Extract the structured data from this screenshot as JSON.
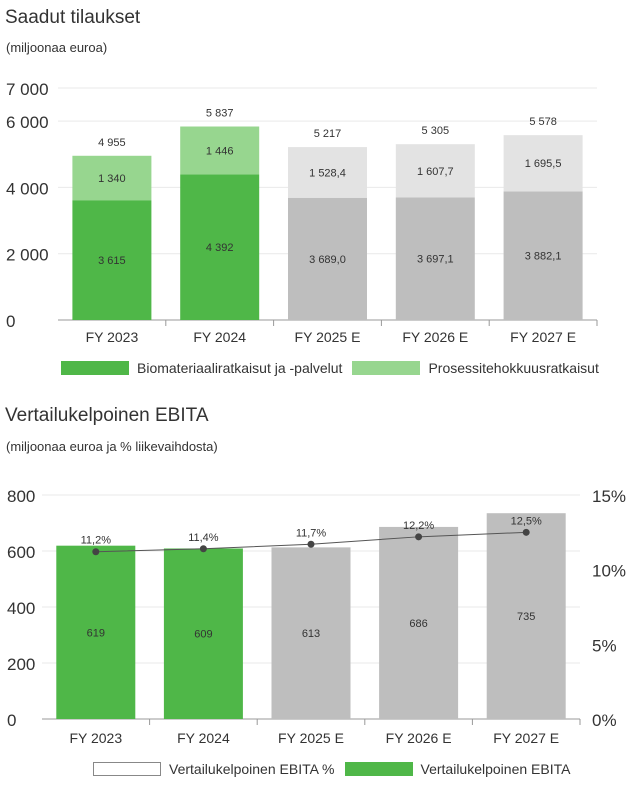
{
  "chart1": {
    "title": "Saadut tilaukset",
    "subtitle": "(miljoonaa euroa)",
    "legend": {
      "series1": "Biomateriaaliratkaisut ja -palvelut",
      "series2": "Prosessitehokkuusratkaisut"
    },
    "colors": {
      "series1_actual": "#4fb748",
      "series2_actual": "#97d68f",
      "series1_estimate": "#bebebe",
      "series2_estimate": "#e3e3e3"
    }
  },
  "chart2": {
    "title": "Vertailukelpoinen EBITA",
    "subtitle": "(miljoonaa euroa ja % liikevaihdosta)",
    "legend": {
      "line": "Vertailukelpoinen EBITA %",
      "bars": "Vertailukelpoinen EBITA"
    },
    "colors": {
      "actual": "#4fb748",
      "estimate": "#bebebe",
      "line": "#555555"
    }
  },
  "chart_data": [
    {
      "type": "bar",
      "stacked": true,
      "title": "Saadut tilaukset",
      "subtitle": "(miljoonaa euroa)",
      "categories": [
        "FY 2023",
        "FY 2024",
        "FY 2025 E",
        "FY 2026 E",
        "FY 2027 E"
      ],
      "series": [
        {
          "name": "Biomateriaaliratkaisut ja -palvelut",
          "values": [
            3615,
            4392,
            3689.0,
            3697.1,
            3882.1
          ],
          "labels": [
            "3 615",
            "4 392",
            "3 689,0",
            "3 697,1",
            "3 882,1"
          ]
        },
        {
          "name": "Prosessitehokkuusratkaisut",
          "values": [
            1340,
            1446,
            1528.4,
            1607.7,
            1695.5
          ],
          "labels": [
            "1 340",
            "1 446",
            "1 528,4",
            "1 607,7",
            "1 695,5"
          ]
        }
      ],
      "totals": [
        4955,
        5837,
        5217,
        5305,
        5578
      ],
      "total_labels": [
        "4 955",
        "5 837",
        "5 217",
        "5 305",
        "5 578"
      ],
      "estimate": [
        false,
        false,
        true,
        true,
        true
      ],
      "ylim": [
        0,
        7000
      ],
      "yticks": [
        0,
        2000,
        4000,
        6000,
        7000
      ],
      "ytick_labels": [
        "0",
        "2 000",
        "4 000",
        "6 000",
        "7 000"
      ],
      "grid": true,
      "legend_position": "bottom"
    },
    {
      "type": "bar",
      "title": "Vertailukelpoinen EBITA",
      "subtitle": "(miljoonaa euroa ja % liikevaihdosta)",
      "categories": [
        "FY 2023",
        "FY 2024",
        "FY 2025 E",
        "FY 2026 E",
        "FY 2027 E"
      ],
      "values": [
        619,
        609,
        613,
        686,
        735
      ],
      "value_labels": [
        "619",
        "609",
        "613",
        "686",
        "735"
      ],
      "line": {
        "name": "Vertailukelpoinen EBITA %",
        "values": [
          11.2,
          11.4,
          11.7,
          12.2,
          12.5
        ],
        "labels": [
          "11,2%",
          "11,4%",
          "11,7%",
          "12,2%",
          "12,5%"
        ]
      },
      "estimate": [
        false,
        false,
        true,
        true,
        true
      ],
      "ylim": [
        0,
        800
      ],
      "yticks": [
        0,
        200,
        400,
        600,
        800
      ],
      "ytick_labels": [
        "0",
        "200",
        "400",
        "600",
        "800"
      ],
      "y2lim": [
        0,
        15
      ],
      "y2ticks": [
        0,
        5,
        10,
        15
      ],
      "y2tick_labels": [
        "0%",
        "5%",
        "10%",
        "15%"
      ],
      "grid": true,
      "legend_position": "bottom"
    }
  ]
}
